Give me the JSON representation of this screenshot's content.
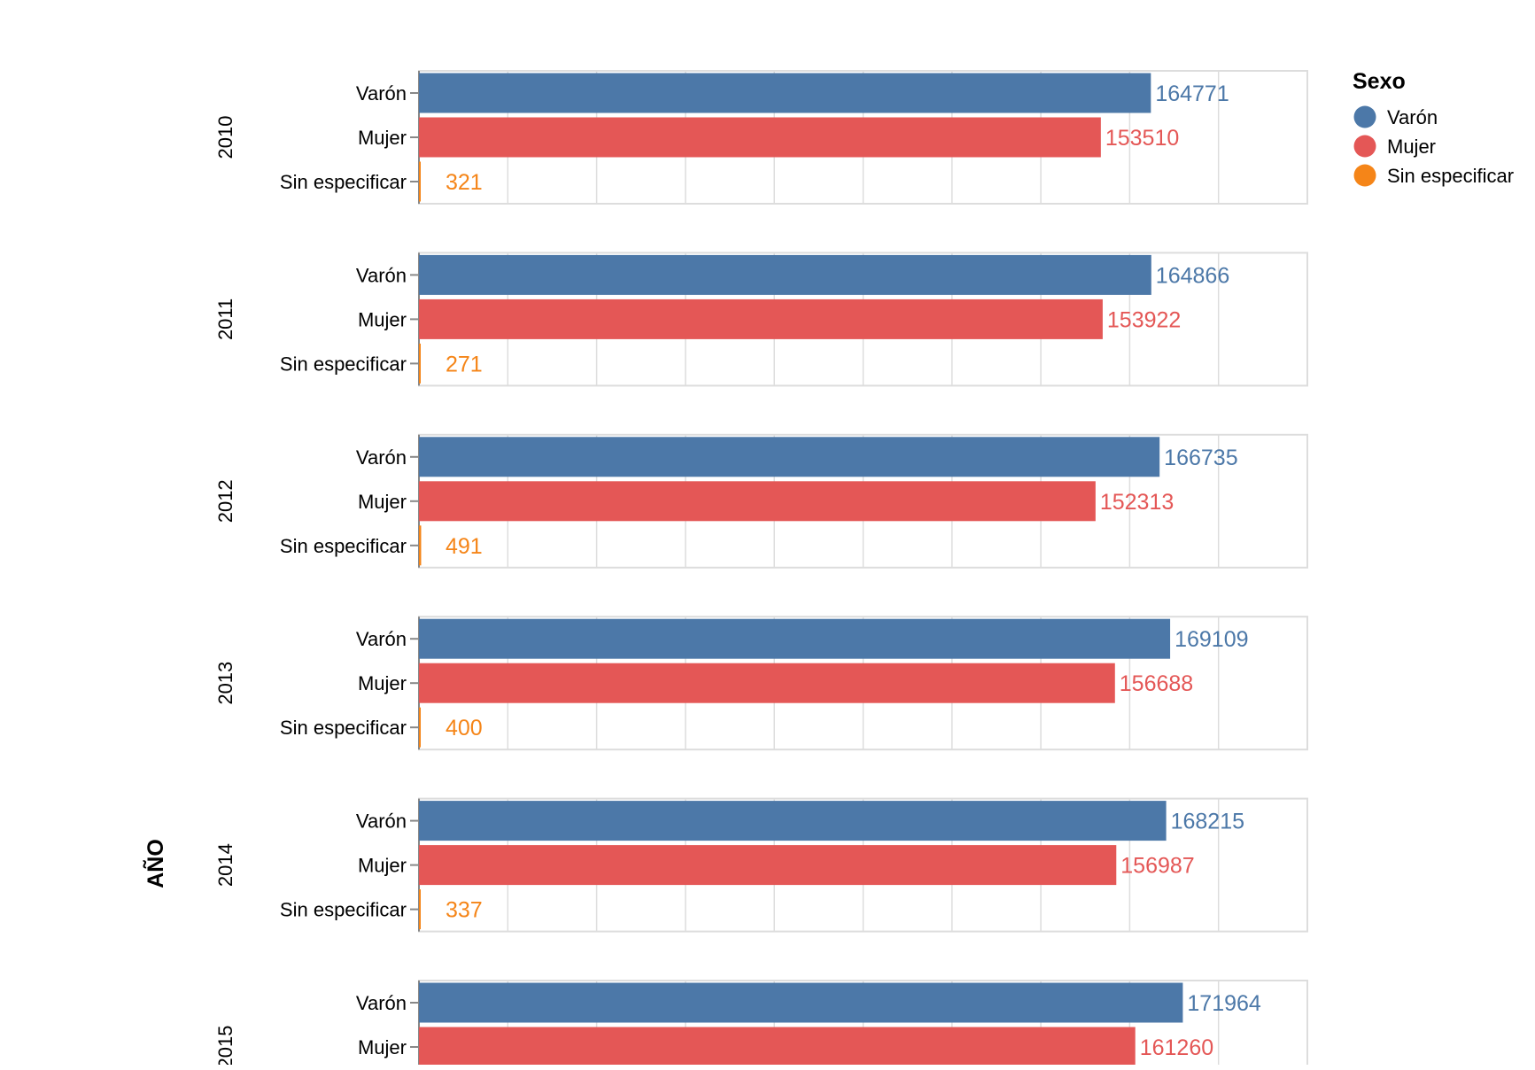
{
  "chart_data": {
    "type": "bar",
    "orientation": "horizontal",
    "row_title": "AÑO",
    "legend": {
      "title": "Sexo",
      "position": "top-right",
      "entries": [
        {
          "label": "Varón",
          "color": "#4c78a8"
        },
        {
          "label": "Mujer",
          "color": "#e45756"
        },
        {
          "label": "Sin especificar",
          "color": "#f58518"
        }
      ]
    },
    "categories": [
      "Varón",
      "Mujer",
      "Sin especificar"
    ],
    "xlim": [
      0,
      200000
    ],
    "grid": true,
    "facets": [
      {
        "year": "2010",
        "values": [
          164771,
          153510,
          321
        ]
      },
      {
        "year": "2011",
        "values": [
          164866,
          153922,
          271
        ]
      },
      {
        "year": "2012",
        "values": [
          166735,
          152313,
          491
        ]
      },
      {
        "year": "2013",
        "values": [
          169109,
          156688,
          400
        ]
      },
      {
        "year": "2014",
        "values": [
          168215,
          156987,
          337
        ]
      },
      {
        "year": "2015",
        "values": [
          171964,
          161260
        ]
      }
    ]
  }
}
